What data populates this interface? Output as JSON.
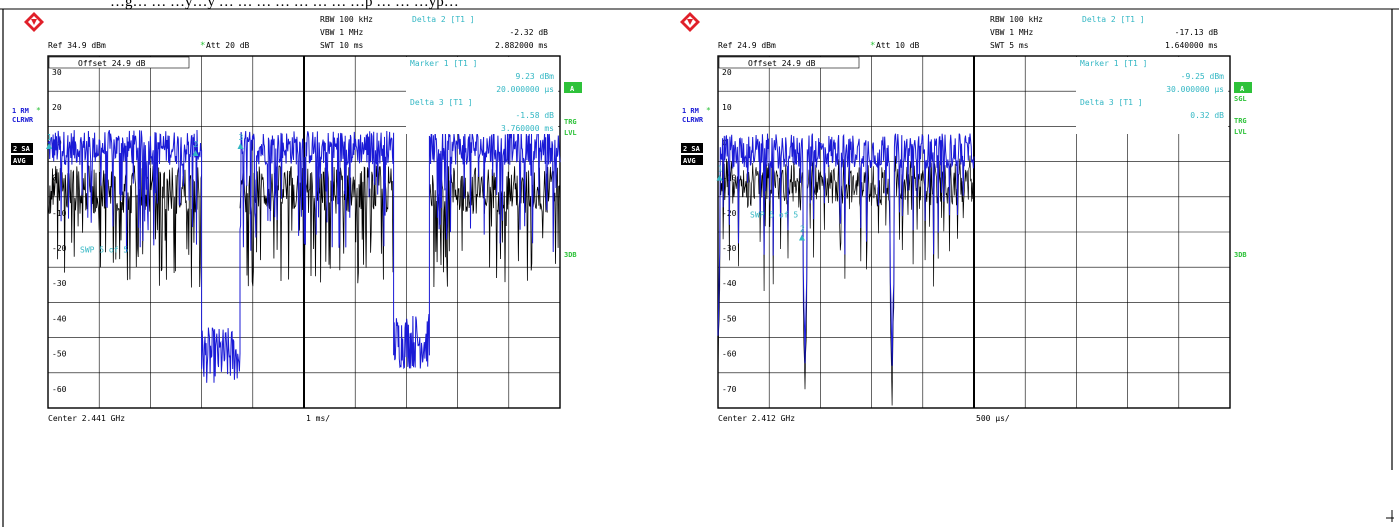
{
  "header_text": "…g… … …y…y …  … … … … … … …p … … …yp…",
  "colors": {
    "trace_blue": "#1a1ad6",
    "trace_black": "#000000",
    "cyan": "#33b7c4",
    "green": "#2ec23a",
    "grid": "#000000"
  },
  "icons": [
    "rs-logo-icon",
    "rs-logo-icon"
  ],
  "chart_data": [
    {
      "type": "line",
      "header": {
        "rbw": "RBW 100 kHz",
        "vbw": "VBW 1 MHz",
        "swt": "SWT 10 ms",
        "ref": "Ref  34.9 dBm",
        "att": "Att  20 dB",
        "delta_title": "Delta 2 [T1 ]",
        "delta_value": "-2.32 dB",
        "delta_time": "2.882000 ms"
      },
      "offset": "Offset  24.9 dB",
      "marker_box": {
        "marker_title": "Marker 1 [T1 ]",
        "marker_value": "9.23 dBm",
        "marker_time": "20.000000 µs",
        "delta3_title": "Delta 3 [T1 ]",
        "delta3_value": "-1.58 dB",
        "delta3_time": "3.760000 ms"
      },
      "left_labels": {
        "trace1": "1 RM",
        "trace1_mode": "CLRWR",
        "trace2": "2 SA",
        "trace2_mode": "AVG"
      },
      "right_labels": {
        "a": "A",
        "trg": "TRG",
        "lvl": "LVL",
        "db3": "3DB"
      },
      "swp": "SWP     5 of     5",
      "ytick_labels": [
        "30",
        "20",
        "10",
        "0",
        "-10",
        "-20",
        "-30",
        "-40",
        "-50",
        "-60"
      ],
      "ylim": [
        -65,
        35
      ],
      "footer": {
        "center": "Center 2.441 GHz",
        "span": "1 ms/"
      },
      "markers": [
        {
          "label": "1",
          "x": 0.02,
          "y": 10
        },
        {
          "label": "2",
          "x": 2.88,
          "y": 8
        },
        {
          "label": "3",
          "x": 3.76,
          "y": 10
        }
      ],
      "blue_segments": [
        {
          "x_from": 0.0,
          "x_to": 3.0,
          "level": 9
        },
        {
          "x_from": 3.0,
          "x_to": 3.75,
          "level": -50
        },
        {
          "x_from": 3.75,
          "x_to": 6.75,
          "level": 9
        },
        {
          "x_from": 6.75,
          "x_to": 7.45,
          "level": -46
        },
        {
          "x_from": 7.45,
          "x_to": 10.0,
          "level": 9
        }
      ],
      "black_segments": [
        {
          "x_from": 0.0,
          "x_to": 3.0,
          "level": -3
        },
        {
          "x_from": 3.75,
          "x_to": 6.75,
          "level": -3
        },
        {
          "x_from": 7.45,
          "x_to": 10.0,
          "level": -3
        }
      ]
    },
    {
      "type": "line",
      "header": {
        "rbw": "RBW 100 kHz",
        "vbw": "VBW 1 MHz",
        "swt": "SWT 5 ms",
        "ref": "Ref  24.9 dBm",
        "att": "Att  10 dB",
        "delta_title": "Delta 2 [T1 ]",
        "delta_value": "-17.13 dB",
        "delta_time": "1.640000 ms"
      },
      "offset": "Offset  24.9 dB",
      "marker_box": {
        "marker_title": "Marker 1 [T1 ]",
        "marker_value": "-9.25 dBm",
        "marker_time": "30.000000 µs",
        "delta3_title": "Delta 3 [T1 ]",
        "delta3_value": "0.32 dB",
        "delta3_time": ""
      },
      "left_labels": {
        "trace1": "1 RM",
        "trace1_mode": "CLRWR",
        "trace2": "2 SA",
        "trace2_mode": "AVG"
      },
      "right_labels": {
        "a": "A",
        "sgl": "SGL",
        "trg": "TRG",
        "lvl": "LVL",
        "db3": "3DB"
      },
      "swp": "SWP     5 of     5",
      "ytick_labels": [
        "20",
        "10",
        "0",
        "-10",
        "-20",
        "-30",
        "-40",
        "-50",
        "-60",
        "-70"
      ],
      "ylim": [
        -75,
        25
      ],
      "footer": {
        "center": "Center 2.412 GHz",
        "span": "500 µs/"
      },
      "markers": [
        {
          "label": "1",
          "x": 0.03,
          "y": -9
        },
        {
          "label": "2",
          "x": 1.64,
          "y": -26
        }
      ],
      "blue_segments": [
        {
          "x_from": 0.0,
          "x_to": 5.0,
          "level": -2
        }
      ],
      "dips": [
        {
          "x": 0.0,
          "depth": -58
        },
        {
          "x": 1.7,
          "depth": -63
        },
        {
          "x": 3.4,
          "depth": -64
        }
      ]
    }
  ]
}
